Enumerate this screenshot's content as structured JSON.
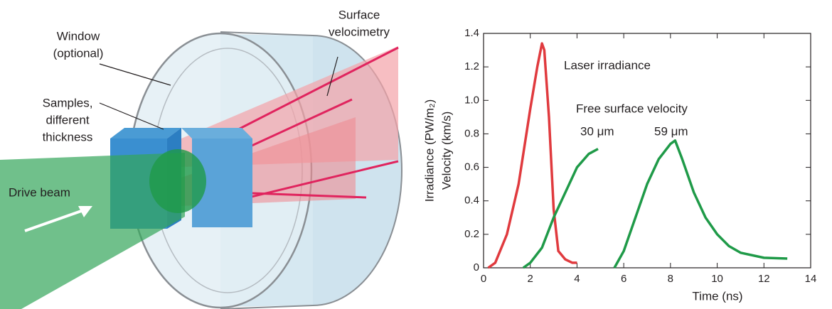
{
  "diagram": {
    "labels": [
      "Surface",
      "velocimetry",
      "Window",
      "(optional)",
      "Samples,",
      "different",
      "thickness",
      "Drive beam"
    ]
  },
  "chart_data": {
    "type": "line",
    "xlabel": "Time (ns)",
    "ylabel": [
      "Irradiance (PW/m₂)",
      "Velocity (km/s)"
    ],
    "annotations": [
      "Free surface velocity"
    ],
    "xlim": [
      0,
      14
    ],
    "xticks": [
      0,
      2,
      4,
      6,
      8,
      10,
      12,
      14
    ],
    "ylim": [
      0,
      1.4
    ],
    "yticks": [
      0,
      0.2,
      0.4,
      0.6,
      0.8,
      {
        "value": 1,
        "label": "1.0"
      },
      1.2,
      1.4
    ],
    "series": [
      {
        "name": "Laser irradiance",
        "color": "#e03a3e",
        "x": [
          0.2,
          0.5,
          1.0,
          1.5,
          2.0,
          2.3,
          2.5,
          2.6,
          2.8,
          3.0,
          3.2,
          3.5,
          3.8,
          4.0
        ],
        "values": [
          0,
          0.03,
          0.2,
          0.5,
          0.95,
          1.2,
          1.34,
          1.3,
          0.9,
          0.35,
          0.1,
          0.05,
          0.03,
          0.03
        ]
      },
      {
        "name": "30 μm",
        "color": "#1f9a48",
        "x": [
          1.7,
          2.0,
          2.5,
          3.0,
          3.5,
          4.0,
          4.5,
          4.9
        ],
        "values": [
          0,
          0.03,
          0.12,
          0.3,
          0.45,
          0.6,
          0.68,
          0.71
        ]
      },
      {
        "name": "59 μm",
        "color": "#1f9a48",
        "x": [
          5.6,
          6.0,
          6.5,
          7.0,
          7.5,
          8.0,
          8.2,
          8.5,
          9.0,
          9.5,
          10,
          10.5,
          11,
          12,
          13
        ],
        "values": [
          0,
          0.1,
          0.3,
          0.5,
          0.65,
          0.74,
          0.76,
          0.65,
          0.45,
          0.3,
          0.2,
          0.13,
          0.09,
          0.06,
          0.055
        ]
      }
    ]
  }
}
